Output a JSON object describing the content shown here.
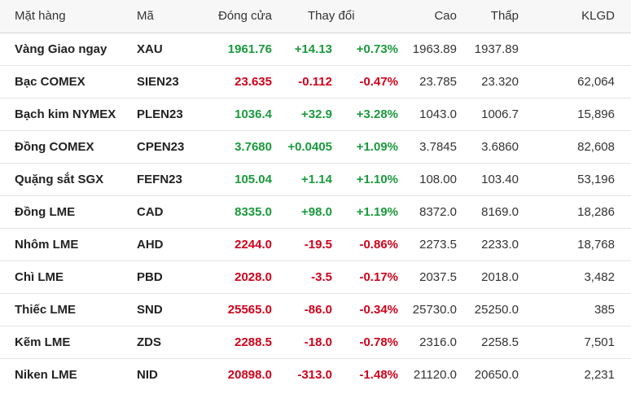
{
  "table": {
    "headers": {
      "name": "Mặt hàng",
      "code": "Mã",
      "close": "Đóng cửa",
      "change": "Thay đổi",
      "high": "Cao",
      "low": "Thấp",
      "volume": "KLGD"
    },
    "colors": {
      "up": "#1a9a3c",
      "down": "#d0021b"
    },
    "rows": [
      {
        "name": "Vàng Giao ngay",
        "code": "XAU",
        "close": "1961.76",
        "change": "+14.13",
        "pct": "+0.73%",
        "high": "1963.89",
        "low": "1937.89",
        "volume": "",
        "direction": "up"
      },
      {
        "name": "Bạc COMEX",
        "code": "SIEN23",
        "close": "23.635",
        "change": "-0.112",
        "pct": "-0.47%",
        "high": "23.785",
        "low": "23.320",
        "volume": "62,064",
        "direction": "down"
      },
      {
        "name": "Bạch kim NYMEX",
        "code": "PLEN23",
        "close": "1036.4",
        "change": "+32.9",
        "pct": "+3.28%",
        "high": "1043.0",
        "low": "1006.7",
        "volume": "15,896",
        "direction": "up"
      },
      {
        "name": "Đồng COMEX",
        "code": "CPEN23",
        "close": "3.7680",
        "change": "+0.0405",
        "pct": "+1.09%",
        "high": "3.7845",
        "low": "3.6860",
        "volume": "82,608",
        "direction": "up"
      },
      {
        "name": "Quặng sắt SGX",
        "code": "FEFN23",
        "close": "105.04",
        "change": "+1.14",
        "pct": "+1.10%",
        "high": "108.00",
        "low": "103.40",
        "volume": "53,196",
        "direction": "up"
      },
      {
        "name": "Đồng LME",
        "code": "CAD",
        "close": "8335.0",
        "change": "+98.0",
        "pct": "+1.19%",
        "high": "8372.0",
        "low": "8169.0",
        "volume": "18,286",
        "direction": "up"
      },
      {
        "name": "Nhôm LME",
        "code": "AHD",
        "close": "2244.0",
        "change": "-19.5",
        "pct": "-0.86%",
        "high": "2273.5",
        "low": "2233.0",
        "volume": "18,768",
        "direction": "down"
      },
      {
        "name": "Chì LME",
        "code": "PBD",
        "close": "2028.0",
        "change": "-3.5",
        "pct": "-0.17%",
        "high": "2037.5",
        "low": "2018.0",
        "volume": "3,482",
        "direction": "down"
      },
      {
        "name": "Thiếc LME",
        "code": "SND",
        "close": "25565.0",
        "change": "-86.0",
        "pct": "-0.34%",
        "high": "25730.0",
        "low": "25250.0",
        "volume": "385",
        "direction": "down"
      },
      {
        "name": "Kẽm LME",
        "code": "ZDS",
        "close": "2288.5",
        "change": "-18.0",
        "pct": "-0.78%",
        "high": "2316.0",
        "low": "2258.5",
        "volume": "7,501",
        "direction": "down"
      },
      {
        "name": "Niken LME",
        "code": "NID",
        "close": "20898.0",
        "change": "-313.0",
        "pct": "-1.48%",
        "high": "21120.0",
        "low": "20650.0",
        "volume": "2,231",
        "direction": "down"
      }
    ]
  }
}
